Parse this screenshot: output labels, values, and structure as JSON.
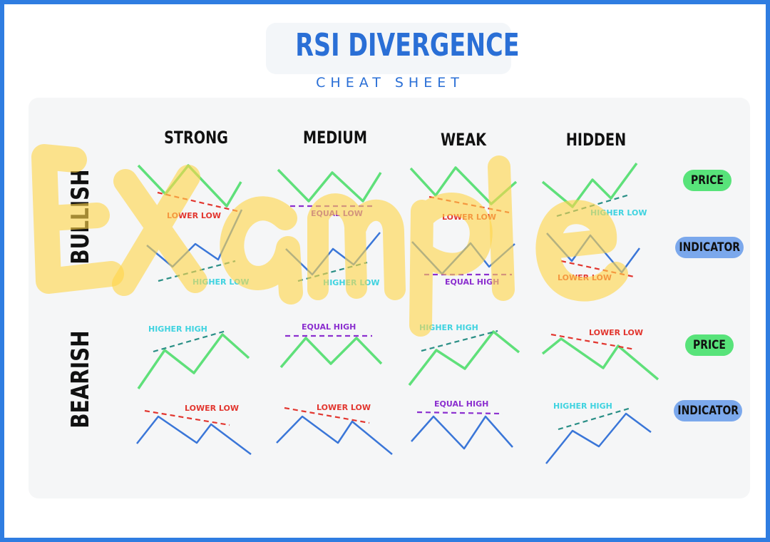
{
  "header": {
    "title": "RSI DIVERGENCE",
    "subtitle": "CHEAT SHEET"
  },
  "columns": [
    "STRONG",
    "MEDIUM",
    "WEAK",
    "HIDDEN"
  ],
  "rows": [
    "BULLISH",
    "BEARISH"
  ],
  "pills": {
    "price": "PRICE",
    "indicator": "INDICATOR"
  },
  "watermark": "Example",
  "labels": {
    "lower_low": "LOWER LOW",
    "equal_low": "EQUAL LOW",
    "higher_low": "HIGHER LOW",
    "equal_high": "EQUAL HIGH",
    "higher_high": "HIGHER HIGH"
  },
  "colors": {
    "frame": "#2f7de1",
    "title": "#2a6fd6",
    "price_line": "#5fe07a",
    "indicator_line": "#3a76d8",
    "lower_label": "#e2362f",
    "equal_label": "#8b2fcf",
    "higher_label": "#3fd3e0",
    "price_pill": "#58e37a",
    "indicator_pill": "#7ba8ec",
    "watermark": "#ffd54a"
  }
}
